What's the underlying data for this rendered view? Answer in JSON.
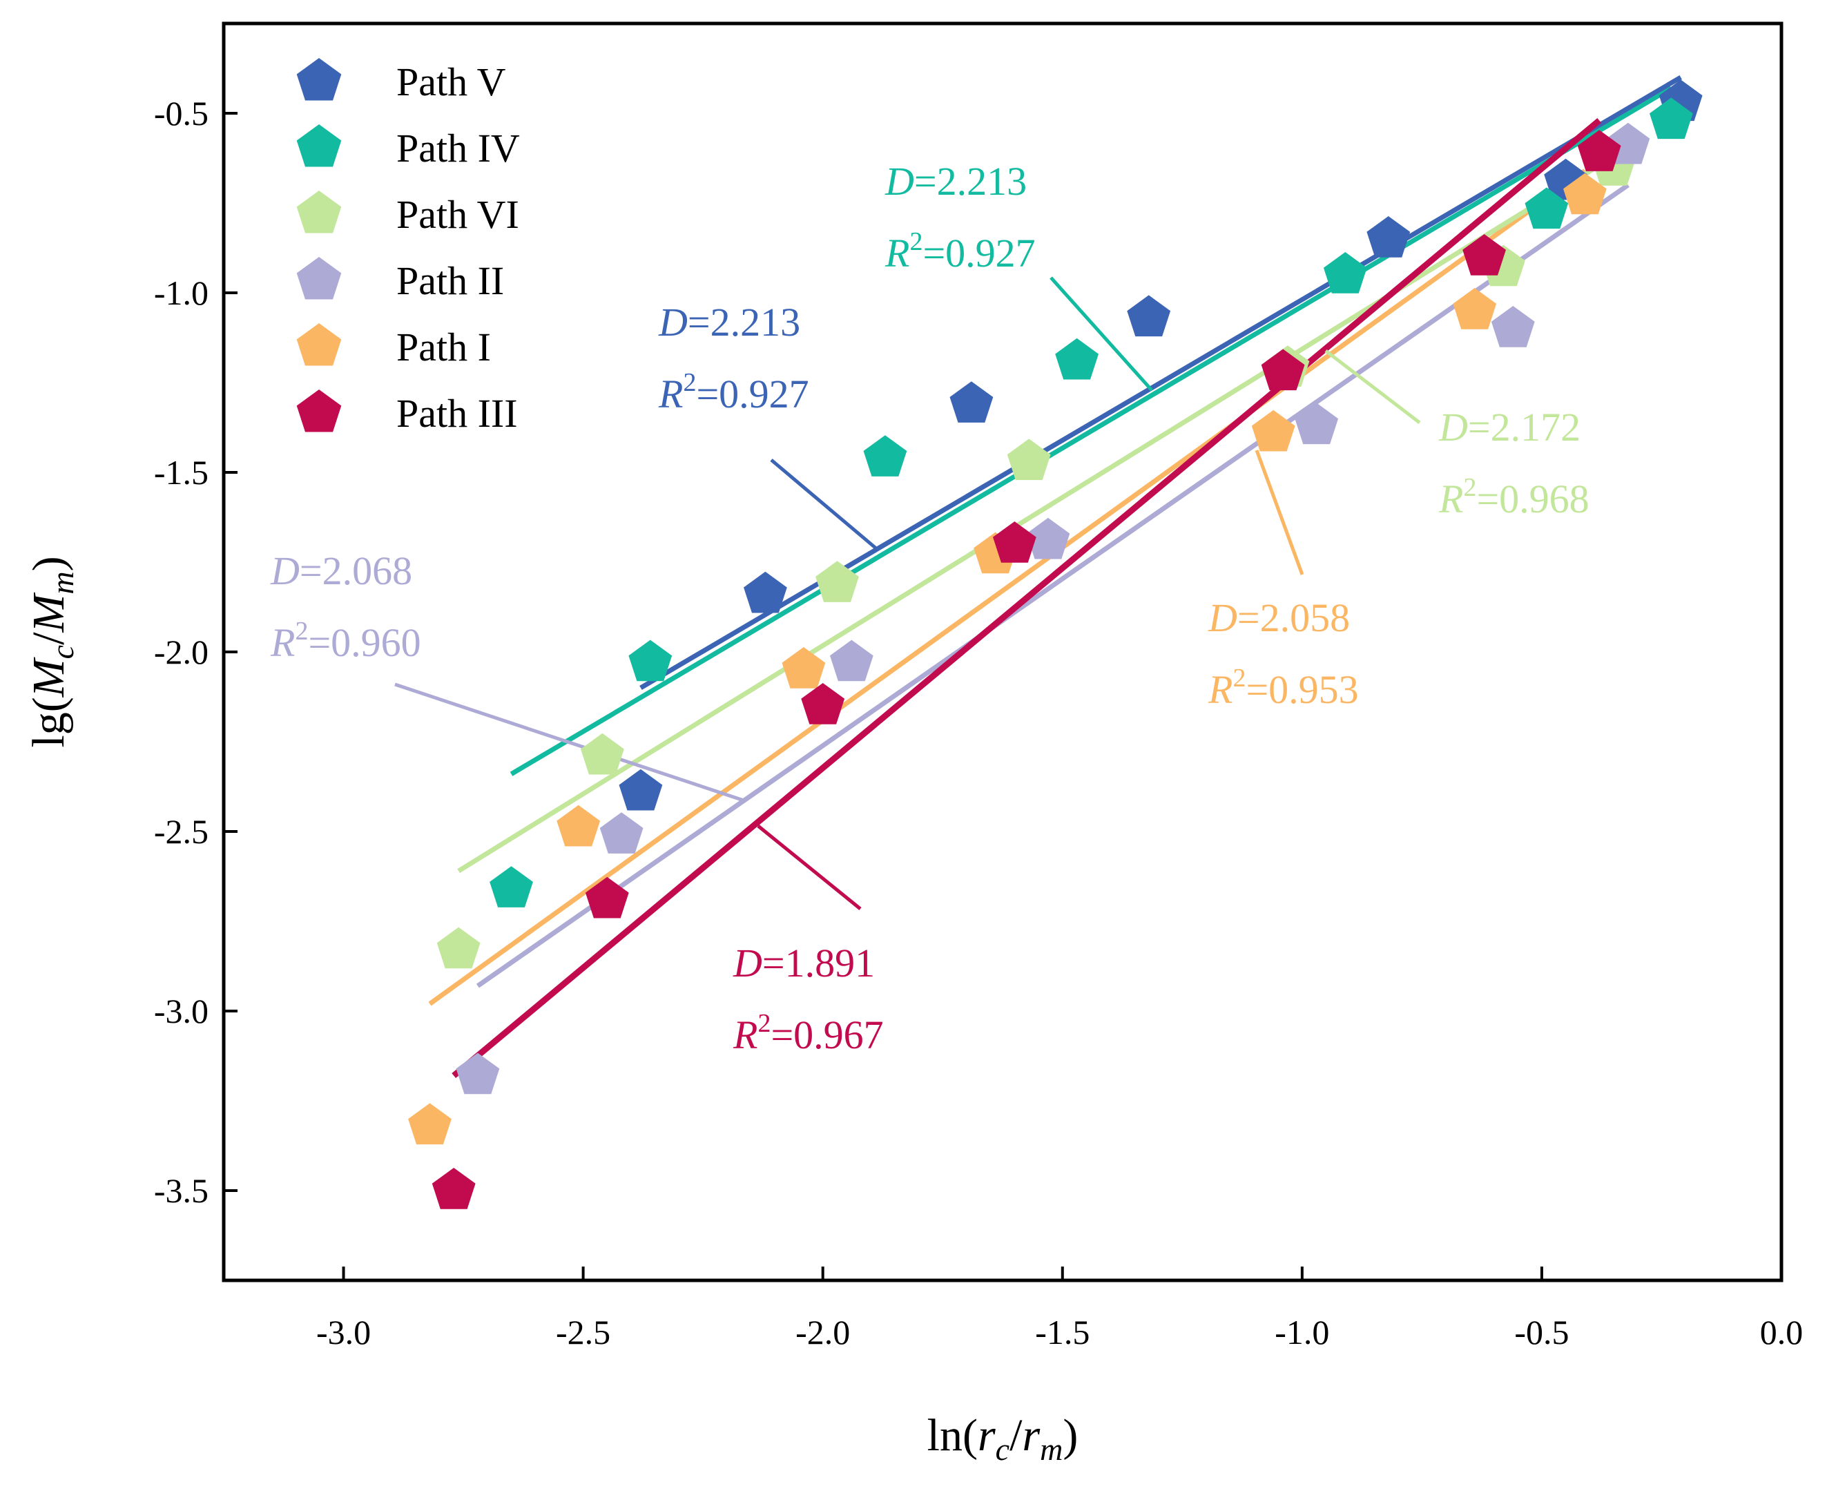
{
  "chart_data": {
    "type": "scatter",
    "xlabel": {
      "prefix": "ln(",
      "r1": "r",
      "s1": "c",
      "slash": "/",
      "r2": "r",
      "s2": "m",
      "suffix": ")"
    },
    "ylabel": {
      "prefix": "lg(",
      "r1": "M",
      "s1": "c",
      "slash": "/",
      "r2": "M",
      "s2": "m",
      "suffix": ")"
    },
    "xlim": [
      -3.25,
      0.0
    ],
    "ylim": [
      -3.75,
      -0.25
    ],
    "xticks": [
      -3.0,
      -2.5,
      -2.0,
      -1.5,
      -1.0,
      -0.5,
      0.0
    ],
    "yticks": [
      -3.5,
      -3.0,
      -2.5,
      -2.0,
      -1.5,
      -1.0,
      -0.5
    ],
    "xtick_labels": [
      "-3.0",
      "-2.5",
      "-2.0",
      "-1.5",
      "-1.0",
      "-0.5",
      "0.0"
    ],
    "ytick_labels": [
      "-3.5",
      "-3.0",
      "-2.5",
      "-2.0",
      "-1.5",
      "-1.0",
      "-0.5"
    ],
    "grid": false,
    "legend_position": "top-left",
    "series": [
      {
        "name": "Path V",
        "color": "#3C64B4",
        "points": [
          [
            -2.38,
            -2.39
          ],
          [
            -2.12,
            -1.84
          ],
          [
            -1.69,
            -1.31
          ],
          [
            -1.32,
            -1.07
          ],
          [
            -0.82,
            -0.85
          ],
          [
            -0.45,
            -0.69
          ],
          [
            -0.21,
            -0.47
          ]
        ],
        "fit": [
          [
            -2.38,
            -2.1
          ],
          [
            -0.21,
            -0.4
          ]
        ],
        "D": "2.213",
        "R2": "0.927"
      },
      {
        "name": "Path IV",
        "color": "#12BBA0",
        "points": [
          [
            -2.65,
            -2.66
          ],
          [
            -2.36,
            -2.03
          ],
          [
            -1.87,
            -1.46
          ],
          [
            -1.47,
            -1.19
          ],
          [
            -0.91,
            -0.95
          ],
          [
            -0.49,
            -0.77
          ],
          [
            -0.23,
            -0.52
          ]
        ],
        "fit": [
          [
            -2.65,
            -2.34
          ],
          [
            -0.23,
            -0.43
          ]
        ],
        "D": "2.213",
        "R2": "0.927"
      },
      {
        "name": "Path VI",
        "color": "#C2E69A",
        "points": [
          [
            -2.76,
            -2.83
          ],
          [
            -2.46,
            -2.29
          ],
          [
            -1.97,
            -1.81
          ],
          [
            -1.57,
            -1.47
          ],
          [
            -1.03,
            -1.21
          ],
          [
            -0.58,
            -0.93
          ],
          [
            -0.35,
            -0.65
          ]
        ],
        "fit": [
          [
            -2.76,
            -2.61
          ],
          [
            -0.35,
            -0.62
          ]
        ],
        "D": "2.172",
        "R2": "0.968"
      },
      {
        "name": "Path II",
        "color": "#ADAAD5",
        "points": [
          [
            -2.72,
            -3.18
          ],
          [
            -2.42,
            -2.51
          ],
          [
            -1.94,
            -2.03
          ],
          [
            -1.53,
            -1.69
          ],
          [
            -0.97,
            -1.37
          ],
          [
            -0.56,
            -1.1
          ],
          [
            -0.32,
            -0.59
          ]
        ],
        "fit": [
          [
            -2.72,
            -2.93
          ],
          [
            -0.32,
            -0.7
          ]
        ],
        "D": "2.068",
        "R2": "0.960"
      },
      {
        "name": "Path I",
        "color": "#FBB664",
        "points": [
          [
            -2.82,
            -3.32
          ],
          [
            -2.51,
            -2.49
          ],
          [
            -2.04,
            -2.05
          ],
          [
            -1.64,
            -1.73
          ],
          [
            -1.06,
            -1.39
          ],
          [
            -0.64,
            -1.05
          ],
          [
            -0.41,
            -0.73
          ]
        ],
        "fit": [
          [
            -2.82,
            -2.98
          ],
          [
            -0.41,
            -0.66
          ]
        ],
        "D": "2.058",
        "R2": "0.953"
      },
      {
        "name": "Path III",
        "color": "#C20B4E",
        "points": [
          [
            -2.77,
            -3.5
          ],
          [
            -2.45,
            -2.69
          ],
          [
            -2.0,
            -2.15
          ],
          [
            -1.6,
            -1.7
          ],
          [
            -1.04,
            -1.22
          ],
          [
            -0.62,
            -0.9
          ],
          [
            -0.38,
            -0.61
          ]
        ],
        "fit": [
          [
            -2.77,
            -3.18
          ],
          [
            -0.38,
            -0.52
          ]
        ],
        "D": "1.891",
        "R2": "0.967"
      }
    ],
    "annotations": [
      {
        "series": "Path IV",
        "label_d": "D",
        "d": "=2.213",
        "label_r": "R",
        "sup": "2",
        "r": "=0.927"
      },
      {
        "series": "Path V",
        "label_d": "D",
        "d": "=2.213",
        "label_r": "R",
        "sup": "2",
        "r": "=0.927"
      },
      {
        "series": "Path VI",
        "label_d": "D",
        "d": "=2.172",
        "label_r": "R",
        "sup": "2",
        "r": "=0.968"
      },
      {
        "series": "Path II",
        "label_d": "D",
        "d": "=2.068",
        "label_r": "R",
        "sup": "2",
        "r": "=0.960"
      },
      {
        "series": "Path I",
        "label_d": "D",
        "d": "=2.058",
        "label_r": "R",
        "sup": "2",
        "r": "=0.953"
      },
      {
        "series": "Path III",
        "label_d": "D",
        "d": "=1.891",
        "label_r": "R",
        "sup": "2",
        "r": "=0.967"
      }
    ]
  }
}
